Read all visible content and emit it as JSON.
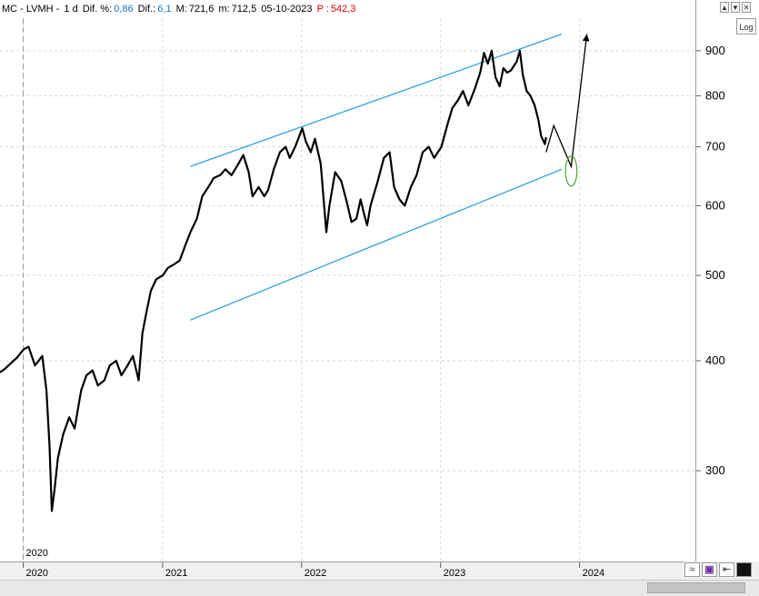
{
  "info": {
    "symbol": "MC - LVMH -",
    "period": "1 d",
    "dif_pct_label": "Dif. %:",
    "dif_pct_value": "0,86",
    "dif_label": "Dif.:",
    "dif_value": "6,1",
    "max_label": "M:",
    "max_value": "721,6",
    "min_label": "m:",
    "min_value": "712,5",
    "date": "05-10-2023",
    "p_label": "P :",
    "p_value": "542,3"
  },
  "buttons": {
    "log": "Log",
    "win_up": "▲",
    "win_down": "▼",
    "win_close": "✕"
  },
  "colors": {
    "price": "#000000",
    "channel": "#1f9bd8",
    "ellipse": "#4ea72e",
    "grid": "#d8d8d8",
    "positive": "#1e74c8",
    "negative": "#e00000"
  },
  "chart_data": {
    "type": "line",
    "scale": "log",
    "grid": true,
    "ylim": [
      240,
      980
    ],
    "xlim": [
      "2019-11-01",
      "2024-10-31"
    ],
    "x_ticks": [
      {
        "label": "2020",
        "date": "2020-01-01"
      },
      {
        "label": "2021",
        "date": "2021-01-01"
      },
      {
        "label": "2022",
        "date": "2022-01-01"
      },
      {
        "label": "2023",
        "date": "2023-01-01"
      },
      {
        "label": "2024",
        "date": "2024-01-01"
      }
    ],
    "y_ticks": [
      300,
      400,
      500,
      600,
      700,
      800,
      900
    ],
    "year_marker": {
      "label": "2020",
      "date": "2020-01-01"
    },
    "series": [
      {
        "type": "line",
        "points": [
          [
            "2019-11-01",
            388
          ],
          [
            "2019-11-15",
            392
          ],
          [
            "2019-12-01",
            398
          ],
          [
            "2019-12-15",
            403
          ],
          [
            "2020-01-02",
            412
          ],
          [
            "2020-01-15",
            415
          ],
          [
            "2020-02-01",
            395
          ],
          [
            "2020-02-20",
            405
          ],
          [
            "2020-03-02",
            370
          ],
          [
            "2020-03-10",
            320
          ],
          [
            "2020-03-16",
            270
          ],
          [
            "2020-03-23",
            285
          ],
          [
            "2020-04-01",
            310
          ],
          [
            "2020-04-15",
            330
          ],
          [
            "2020-05-01",
            345
          ],
          [
            "2020-05-15",
            335
          ],
          [
            "2020-06-01",
            370
          ],
          [
            "2020-06-15",
            385
          ],
          [
            "2020-07-01",
            390
          ],
          [
            "2020-07-15",
            375
          ],
          [
            "2020-08-01",
            380
          ],
          [
            "2020-08-15",
            395
          ],
          [
            "2020-09-01",
            400
          ],
          [
            "2020-09-15",
            385
          ],
          [
            "2020-10-01",
            395
          ],
          [
            "2020-10-15",
            405
          ],
          [
            "2020-10-30",
            380
          ],
          [
            "2020-11-09",
            430
          ],
          [
            "2020-11-20",
            455
          ],
          [
            "2020-12-01",
            480
          ],
          [
            "2020-12-15",
            495
          ],
          [
            "2021-01-01",
            500
          ],
          [
            "2021-01-15",
            510
          ],
          [
            "2021-02-01",
            515
          ],
          [
            "2021-02-15",
            520
          ],
          [
            "2021-03-01",
            540
          ],
          [
            "2021-03-15",
            560
          ],
          [
            "2021-04-01",
            580
          ],
          [
            "2021-04-15",
            615
          ],
          [
            "2021-05-01",
            630
          ],
          [
            "2021-05-15",
            645
          ],
          [
            "2021-06-01",
            650
          ],
          [
            "2021-06-15",
            660
          ],
          [
            "2021-07-01",
            650
          ],
          [
            "2021-07-15",
            665
          ],
          [
            "2021-08-01",
            685
          ],
          [
            "2021-08-15",
            655
          ],
          [
            "2021-08-25",
            615
          ],
          [
            "2021-09-10",
            630
          ],
          [
            "2021-09-25",
            615
          ],
          [
            "2021-10-05",
            625
          ],
          [
            "2021-10-20",
            660
          ],
          [
            "2021-11-05",
            690
          ],
          [
            "2021-11-20",
            700
          ],
          [
            "2021-12-01",
            680
          ],
          [
            "2021-12-15",
            700
          ],
          [
            "2022-01-03",
            735
          ],
          [
            "2022-01-12",
            710
          ],
          [
            "2022-01-25",
            690
          ],
          [
            "2022-02-05",
            715
          ],
          [
            "2022-02-20",
            670
          ],
          [
            "2022-03-07",
            560
          ],
          [
            "2022-03-15",
            600
          ],
          [
            "2022-03-30",
            655
          ],
          [
            "2022-04-15",
            640
          ],
          [
            "2022-04-28",
            610
          ],
          [
            "2022-05-12",
            575
          ],
          [
            "2022-05-25",
            580
          ],
          [
            "2022-06-05",
            610
          ],
          [
            "2022-06-15",
            585
          ],
          [
            "2022-06-22",
            570
          ],
          [
            "2022-07-01",
            600
          ],
          [
            "2022-07-20",
            640
          ],
          [
            "2022-08-05",
            680
          ],
          [
            "2022-08-20",
            690
          ],
          [
            "2022-09-01",
            630
          ],
          [
            "2022-09-15",
            610
          ],
          [
            "2022-09-29",
            600
          ],
          [
            "2022-10-15",
            630
          ],
          [
            "2022-10-30",
            650
          ],
          [
            "2022-11-15",
            690
          ],
          [
            "2022-12-01",
            700
          ],
          [
            "2022-12-15",
            680
          ],
          [
            "2023-01-03",
            700
          ],
          [
            "2023-01-20",
            745
          ],
          [
            "2023-02-01",
            775
          ],
          [
            "2023-02-15",
            790
          ],
          [
            "2023-03-01",
            810
          ],
          [
            "2023-03-15",
            780
          ],
          [
            "2023-04-01",
            815
          ],
          [
            "2023-04-15",
            850
          ],
          [
            "2023-04-25",
            895
          ],
          [
            "2023-05-05",
            870
          ],
          [
            "2023-05-15",
            900
          ],
          [
            "2023-05-25",
            840
          ],
          [
            "2023-06-05",
            820
          ],
          [
            "2023-06-15",
            860
          ],
          [
            "2023-06-25",
            850
          ],
          [
            "2023-07-05",
            855
          ],
          [
            "2023-07-20",
            875
          ],
          [
            "2023-07-28",
            900
          ],
          [
            "2023-08-05",
            845
          ],
          [
            "2023-08-15",
            810
          ],
          [
            "2023-08-25",
            800
          ],
          [
            "2023-09-05",
            780
          ],
          [
            "2023-09-15",
            750
          ],
          [
            "2023-09-22",
            720
          ],
          [
            "2023-10-02",
            705
          ],
          [
            "2023-10-05",
            718
          ]
        ]
      }
    ],
    "annotations": {
      "channel_upper": [
        [
          "2021-03-15",
          665
        ],
        [
          "2023-11-15",
          940
        ]
      ],
      "channel_lower": [
        [
          "2021-03-15",
          445
        ],
        [
          "2023-11-15",
          660
        ]
      ],
      "projection": [
        [
          "2023-10-05",
          690
        ],
        [
          "2023-10-25",
          740
        ],
        [
          "2023-12-10",
          665
        ],
        [
          "2024-01-20",
          940
        ]
      ],
      "target_ellipse": {
        "center": [
          "2023-12-10",
          657
        ],
        "rx_days": 15,
        "ry_ratio": 1.04
      }
    }
  }
}
